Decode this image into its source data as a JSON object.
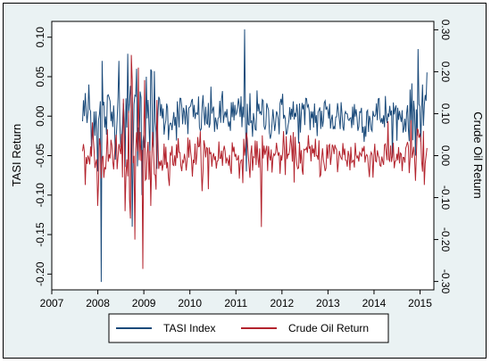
{
  "chart_data": {
    "type": "line",
    "xlabel": "",
    "ylabel_left": "TASI Return",
    "ylabel_right": "Crude Oil Return",
    "x_ticks": [
      "2007",
      "2008",
      "2009",
      "2010",
      "2011",
      "2012",
      "2013",
      "2014",
      "2015"
    ],
    "xlim": [
      2007,
      2015.3
    ],
    "y_left_ticks": [
      "-0.20",
      "-0.15",
      "-0.10",
      "-0.05",
      "0.00",
      "0.05",
      "0.10"
    ],
    "y_left_lim": [
      -0.22,
      0.12
    ],
    "y_right_ticks": [
      "-0.30",
      "-0.20",
      "-0.10",
      "0.00",
      "0.10",
      "0.20",
      "0.30"
    ],
    "y_right_lim": [
      -0.32,
      0.32
    ],
    "grid": false,
    "legend": "bottom",
    "colors": {
      "tasi": "#1a4a7a",
      "oil": "#b3232d",
      "background": "#eaf2f3",
      "plot": "#ffffff"
    },
    "series": [
      {
        "name": "TASI Index",
        "axis": "left",
        "x_start": 2007.67,
        "x_end": 2015.15,
        "n_points": 390,
        "noise_std": 0.015,
        "points": [
          {
            "x": 2007.7,
            "y": 0.0
          },
          {
            "x": 2007.8,
            "y": 0.04
          },
          {
            "x": 2007.9,
            "y": -0.03
          },
          {
            "x": 2008.0,
            "y": -0.07
          },
          {
            "x": 2008.08,
            "y": -0.21
          },
          {
            "x": 2008.1,
            "y": 0.07
          },
          {
            "x": 2008.45,
            "y": 0.07
          },
          {
            "x": 2008.75,
            "y": -0.14
          },
          {
            "x": 2008.85,
            "y": 0.06
          },
          {
            "x": 2008.95,
            "y": -0.1
          },
          {
            "x": 2009.05,
            "y": 0.05
          },
          {
            "x": 2009.2,
            "y": -0.04
          },
          {
            "x": 2011.18,
            "y": 0.11
          },
          {
            "x": 2011.22,
            "y": -0.07
          },
          {
            "x": 2014.9,
            "y": -0.05
          },
          {
            "x": 2014.95,
            "y": 0.085
          },
          {
            "x": 2015.05,
            "y": 0.04
          }
        ]
      },
      {
        "name": "Crude Oil Return",
        "axis": "right",
        "x_start": 2007.67,
        "x_end": 2015.15,
        "n_points": 390,
        "noise_std": 0.025,
        "points": [
          {
            "x": 2007.7,
            "y": 0.01
          },
          {
            "x": 2008.0,
            "y": -0.12
          },
          {
            "x": 2008.4,
            "y": 0.05
          },
          {
            "x": 2008.7,
            "y": -0.15
          },
          {
            "x": 2008.72,
            "y": 0.24
          },
          {
            "x": 2008.8,
            "y": -0.2
          },
          {
            "x": 2008.88,
            "y": 0.21
          },
          {
            "x": 2008.97,
            "y": -0.27
          },
          {
            "x": 2009.02,
            "y": 0.18
          },
          {
            "x": 2009.15,
            "y": -0.12
          },
          {
            "x": 2010.4,
            "y": -0.08
          },
          {
            "x": 2011.55,
            "y": -0.17
          },
          {
            "x": 2014.9,
            "y": -0.06
          },
          {
            "x": 2015.0,
            "y": 0.05
          },
          {
            "x": 2015.1,
            "y": -0.07
          }
        ]
      }
    ]
  }
}
